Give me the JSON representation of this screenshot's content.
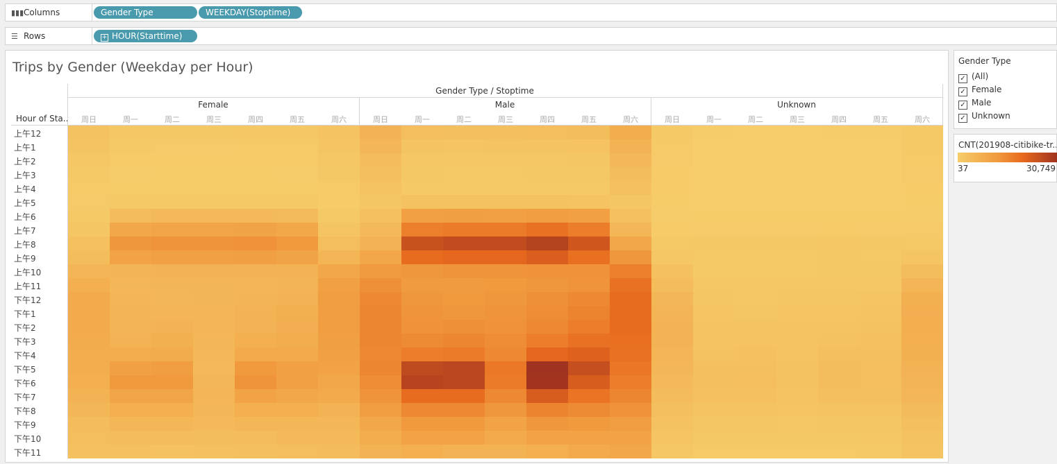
{
  "shelves": {
    "columns": {
      "label": "Columns",
      "icon": "columns-icon",
      "pills": [
        "Gender Type",
        "WEEKDAY(Stoptime)"
      ]
    },
    "rows": {
      "label": "Rows",
      "icon": "rows-icon",
      "pills": [
        "HOUR(Starttime)"
      ]
    }
  },
  "filter": {
    "title": "Gender Type",
    "items": [
      "(All)",
      "Female",
      "Male",
      "Unknown"
    ]
  },
  "legend": {
    "title": "CNT(201908-citibike-tr...",
    "min_label": "37",
    "max_label": "30,749",
    "colors": [
      "#f6cd6a",
      "#f09a3e",
      "#e86a1e",
      "#a0331f"
    ]
  },
  "chart_data": {
    "type": "heatmap",
    "title": "Trips by Gender (Weekday per Hour)",
    "column_header": "Gender Type / Stoptime",
    "row_header": "Hour of Sta..",
    "groups": [
      "Female",
      "Male",
      "Unknown"
    ],
    "days": [
      "周日",
      "周一",
      "周二",
      "周三",
      "周四",
      "周五",
      "周六"
    ],
    "hours": [
      "上午12",
      "上午1",
      "上午2",
      "上午3",
      "上午4",
      "上午5",
      "上午6",
      "上午7",
      "上午8",
      "上午9",
      "上午10",
      "上午11",
      "下午12",
      "下午1",
      "下午2",
      "下午3",
      "下午4",
      "下午5",
      "下午6",
      "下午7",
      "下午8",
      "下午9",
      "下午10",
      "下午11"
    ],
    "color_range": [
      37,
      30749
    ],
    "values": {
      "Female": [
        [
          2200,
          1200,
          1000,
          1000,
          1100,
          1100,
          2000
        ],
        [
          1800,
          800,
          600,
          600,
          700,
          700,
          1600
        ],
        [
          1300,
          500,
          400,
          400,
          450,
          500,
          1300
        ],
        [
          900,
          350,
          300,
          300,
          300,
          350,
          1000
        ],
        [
          650,
          300,
          300,
          300,
          300,
          300,
          700
        ],
        [
          550,
          800,
          800,
          800,
          800,
          800,
          500
        ],
        [
          800,
          3500,
          3800,
          3800,
          3800,
          3600,
          800
        ],
        [
          1500,
          7500,
          8000,
          8000,
          8200,
          7600,
          1700
        ],
        [
          2500,
          11000,
          11500,
          11500,
          12000,
          10500,
          3000
        ],
        [
          3300,
          8500,
          9000,
          9000,
          9200,
          8200,
          4800
        ],
        [
          4800,
          5000,
          5200,
          5200,
          5400,
          5500,
          7500
        ],
        [
          6000,
          4500,
          4600,
          4600,
          4800,
          5000,
          9000
        ],
        [
          7000,
          4800,
          4400,
          4700,
          5000,
          5500,
          9500
        ],
        [
          7000,
          5000,
          4800,
          4800,
          5200,
          5800,
          9500
        ],
        [
          7000,
          5000,
          5200,
          4800,
          5500,
          6200,
          9500
        ],
        [
          6800,
          5500,
          5800,
          4500,
          6000,
          6500,
          9200
        ],
        [
          6500,
          6500,
          6800,
          4200,
          7000,
          7000,
          8800
        ],
        [
          6500,
          9000,
          9500,
          4000,
          10500,
          9000,
          8500
        ],
        [
          6000,
          10500,
          10500,
          4500,
          11500,
          9000,
          7500
        ],
        [
          5500,
          8000,
          8000,
          4800,
          8500,
          7500,
          7000
        ],
        [
          4500,
          6000,
          6000,
          4500,
          6000,
          6000,
          5500
        ],
        [
          3500,
          4500,
          4500,
          4000,
          4500,
          4500,
          4500
        ],
        [
          3000,
          3500,
          3500,
          3300,
          3500,
          3800,
          4000
        ],
        [
          2500,
          2500,
          2300,
          2500,
          2600,
          3000,
          3500
        ]
      ],
      "Male": [
        [
          5500,
          3000,
          2600,
          2800,
          3000,
          3200,
          6500
        ],
        [
          4500,
          1900,
          1700,
          1800,
          1900,
          2000,
          5500
        ],
        [
          3500,
          1300,
          1200,
          1300,
          1300,
          1400,
          4300
        ],
        [
          2600,
          1000,
          900,
          900,
          1000,
          1000,
          3300
        ],
        [
          2000,
          900,
          800,
          800,
          900,
          900,
          2400
        ],
        [
          1500,
          2200,
          2200,
          2200,
          2300,
          2100,
          1500
        ],
        [
          2500,
          9000,
          9200,
          9000,
          9500,
          8800,
          2500
        ],
        [
          4000,
          16000,
          17000,
          17000,
          19000,
          16500,
          4500
        ],
        [
          5500,
          25000,
          26000,
          26000,
          28000,
          24000,
          7500
        ],
        [
          7500,
          20000,
          21000,
          21000,
          22500,
          19500,
          11000
        ],
        [
          10000,
          11000,
          11500,
          11500,
          12000,
          12000,
          16000
        ],
        [
          12500,
          10000,
          10000,
          10500,
          11000,
          11500,
          19000
        ],
        [
          14000,
          11000,
          10500,
          11000,
          12500,
          14000,
          20000
        ],
        [
          14500,
          11500,
          11000,
          11500,
          13000,
          15000,
          20000
        ],
        [
          14500,
          12000,
          12500,
          12000,
          14000,
          16500,
          20000
        ],
        [
          14500,
          13500,
          14500,
          13000,
          16500,
          19000,
          19500
        ],
        [
          14000,
          16500,
          17000,
          14000,
          21000,
          22000,
          19000
        ],
        [
          14500,
          26500,
          27000,
          17500,
          30749,
          25500,
          18000
        ],
        [
          13000,
          27500,
          27000,
          17000,
          30500,
          23000,
          16500
        ],
        [
          11500,
          20000,
          20000,
          14000,
          23000,
          18500,
          14500
        ],
        [
          9500,
          14000,
          14000,
          11000,
          15000,
          13500,
          12000
        ],
        [
          7500,
          10500,
          10500,
          8500,
          11000,
          10500,
          9500
        ],
        [
          6500,
          8500,
          8500,
          7000,
          8500,
          8500,
          8500
        ],
        [
          5500,
          6000,
          5500,
          5500,
          6000,
          7000,
          7500
        ]
      ],
      "Unknown": [
        [
          800,
          150,
          100,
          100,
          150,
          150,
          900
        ],
        [
          700,
          100,
          80,
          80,
          100,
          100,
          800
        ],
        [
          600,
          70,
          60,
          60,
          70,
          80,
          700
        ],
        [
          500,
          50,
          40,
          40,
          50,
          60,
          600
        ],
        [
          400,
          40,
          37,
          37,
          40,
          50,
          450
        ],
        [
          300,
          100,
          100,
          100,
          100,
          100,
          300
        ],
        [
          350,
          300,
          300,
          300,
          300,
          300,
          350
        ],
        [
          500,
          600,
          600,
          600,
          650,
          600,
          550
        ],
        [
          800,
          1000,
          1000,
          1000,
          1100,
          1000,
          900
        ],
        [
          1300,
          900,
          900,
          900,
          950,
          900,
          1600
        ],
        [
          2500,
          900,
          900,
          900,
          950,
          1000,
          3200
        ],
        [
          3500,
          1100,
          1100,
          1100,
          1200,
          1300,
          4800
        ],
        [
          4500,
          1400,
          1300,
          1400,
          1500,
          1700,
          5800
        ],
        [
          5000,
          1600,
          1500,
          1600,
          1700,
          2000,
          6200
        ],
        [
          5200,
          1800,
          1800,
          1800,
          2000,
          2300,
          6300
        ],
        [
          5200,
          2000,
          2100,
          1900,
          2200,
          2500,
          6000
        ],
        [
          4800,
          2300,
          2400,
          2000,
          2600,
          2800,
          5800
        ],
        [
          4500,
          2800,
          2900,
          2200,
          3200,
          3000,
          5500
        ],
        [
          4000,
          2900,
          3000,
          2300,
          3300,
          3000,
          5000
        ],
        [
          3500,
          2400,
          2500,
          2100,
          2600,
          2600,
          4500
        ],
        [
          2800,
          1800,
          1900,
          1700,
          1900,
          2000,
          3600
        ],
        [
          2200,
          1400,
          1400,
          1300,
          1400,
          1500,
          2900
        ],
        [
          1700,
          1000,
          1000,
          950,
          1000,
          1200,
          2300
        ],
        [
          1300,
          700,
          650,
          650,
          700,
          900,
          1800
        ]
      ]
    }
  }
}
